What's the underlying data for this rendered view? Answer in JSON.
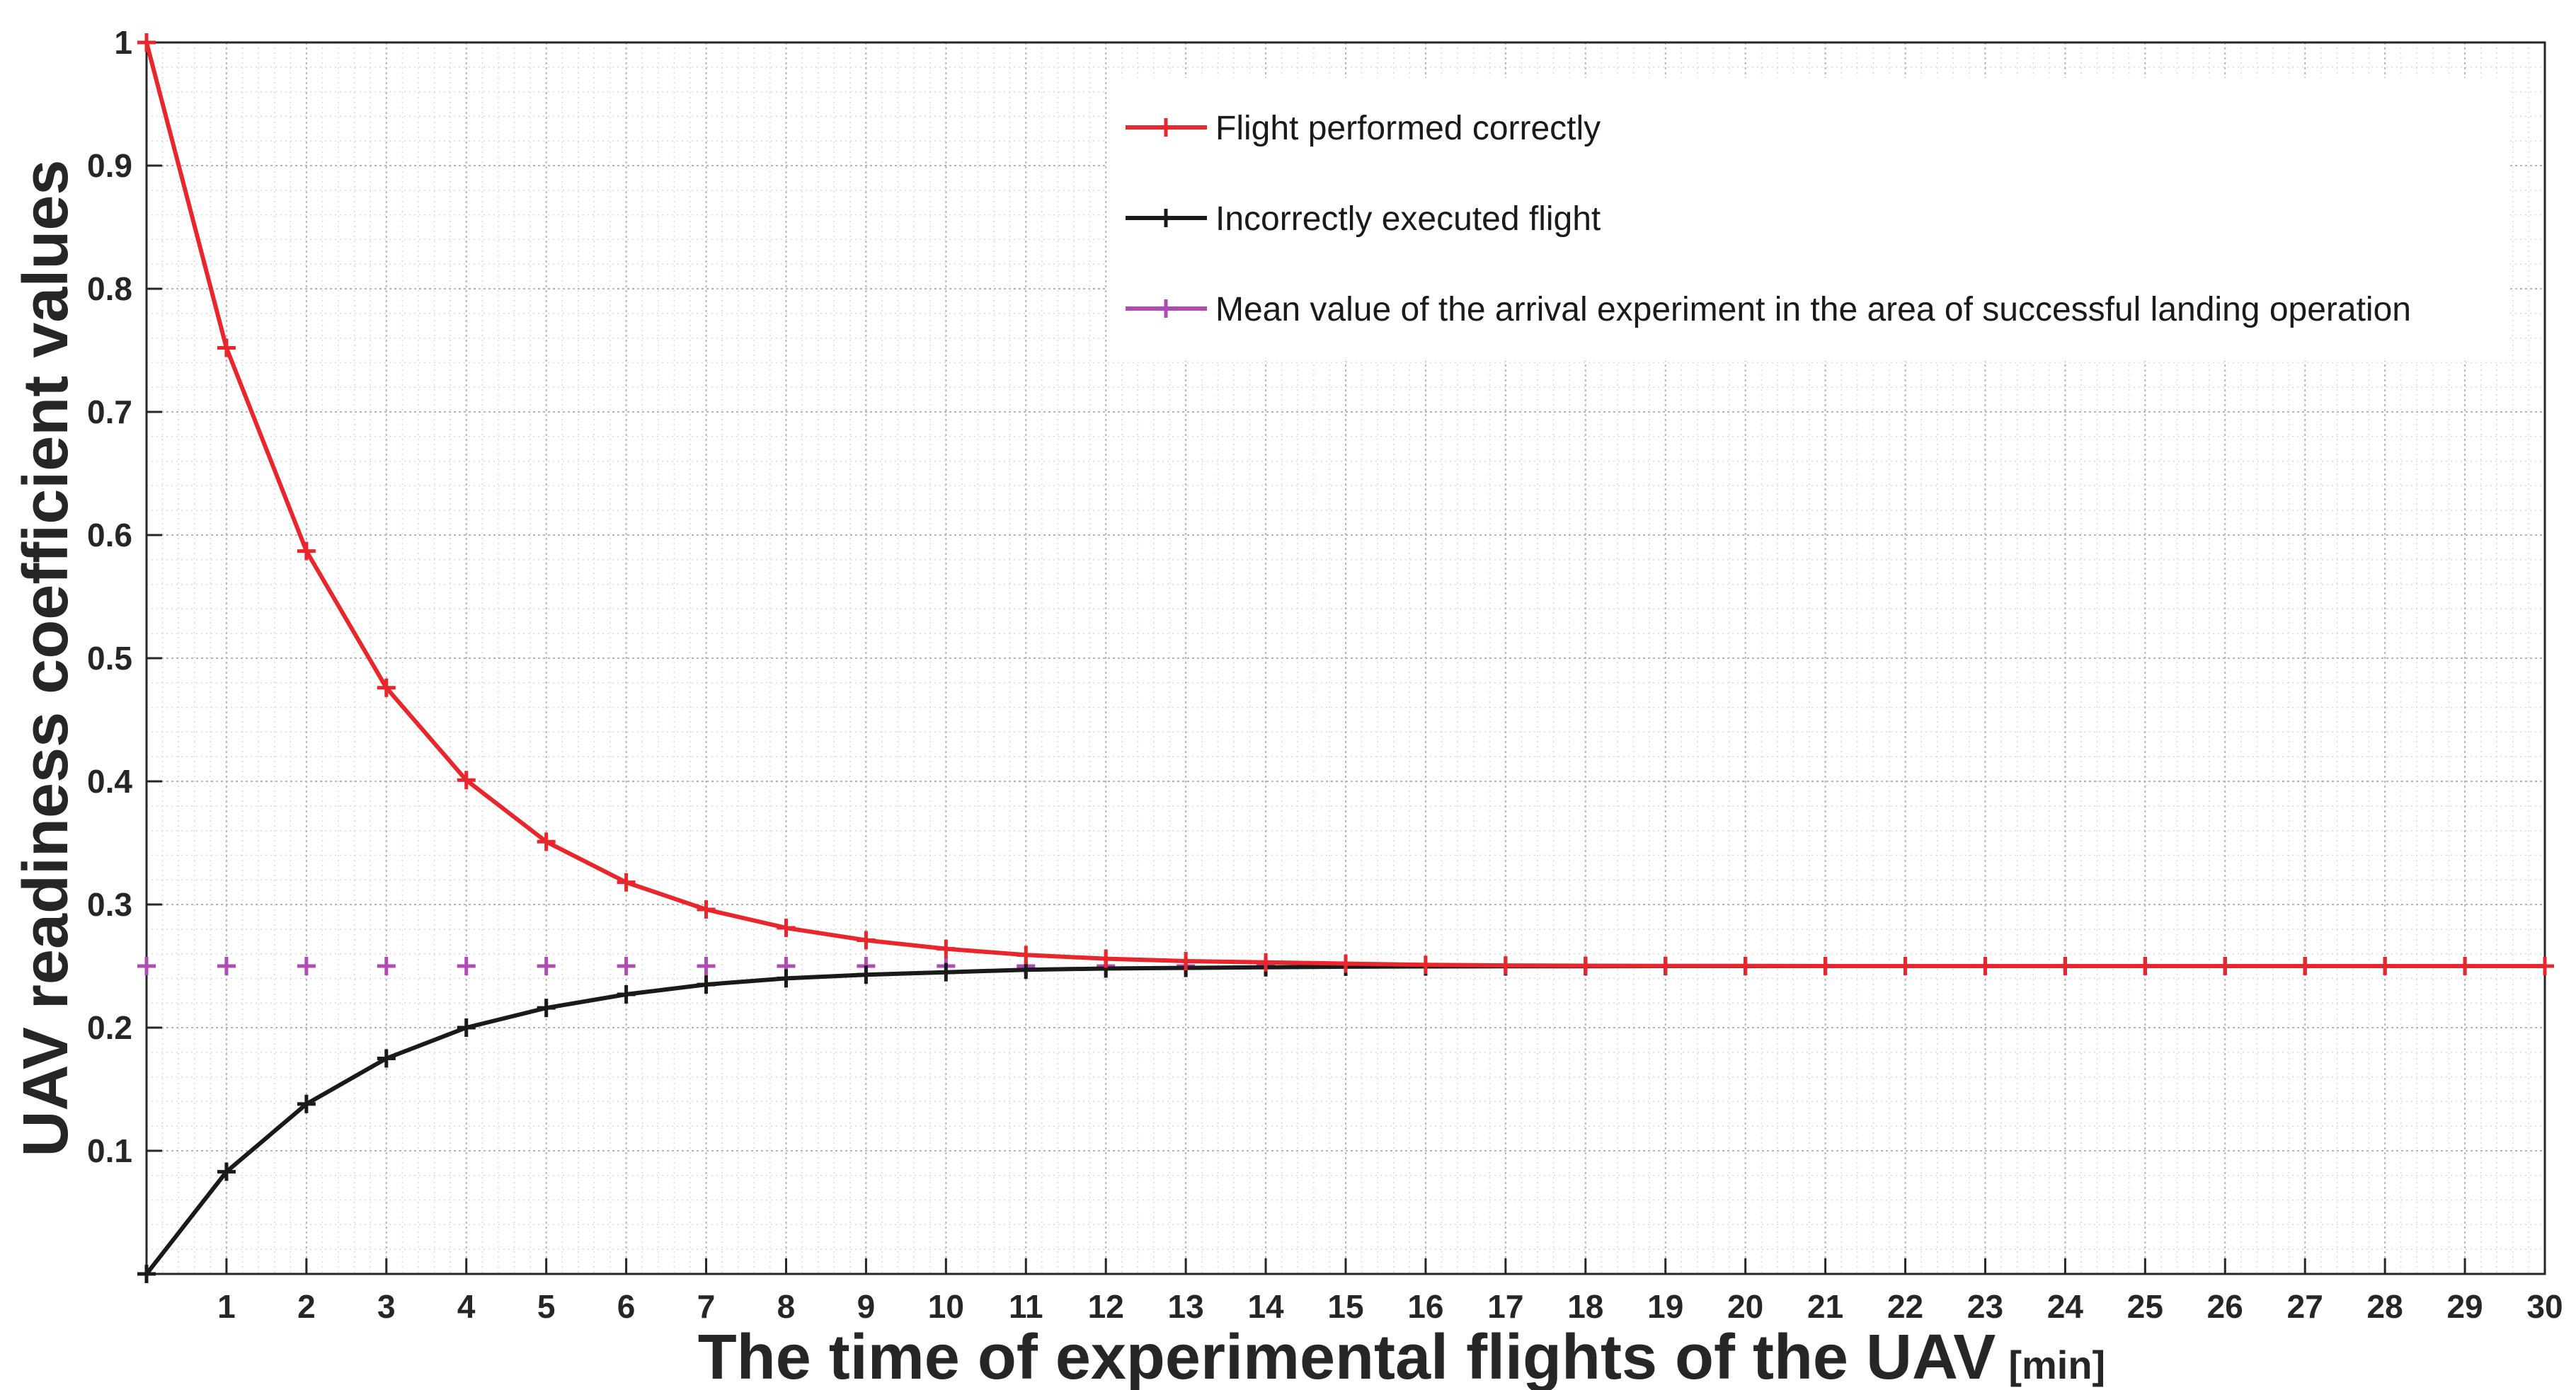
{
  "chart_data": {
    "type": "line",
    "title": "",
    "xlabel": "The time of experimental flights of the UAV",
    "xlabel_unit": "[min]",
    "ylabel": "UAV readiness coefficient values",
    "xlim": [
      0,
      30
    ],
    "ylim": [
      0,
      1
    ],
    "xticks": [
      "1",
      "2",
      "3",
      "4",
      "5",
      "6",
      "7",
      "8",
      "9",
      "10",
      "11",
      "12",
      "13",
      "14",
      "15",
      "16",
      "17",
      "18",
      "19",
      "20",
      "21",
      "22",
      "23",
      "24",
      "25",
      "26",
      "27",
      "28",
      "29",
      "30"
    ],
    "yticks": [
      "0.1",
      "0.2",
      "0.3",
      "0.4",
      "0.5",
      "0.6",
      "0.7",
      "0.8",
      "0.9",
      "1"
    ],
    "grid": true,
    "minor_grid": true,
    "legend_position": "top-right",
    "x": [
      0,
      1,
      2,
      3,
      4,
      5,
      6,
      7,
      8,
      9,
      10,
      11,
      12,
      13,
      14,
      15,
      16,
      17,
      18,
      19,
      20,
      21,
      22,
      23,
      24,
      25,
      26,
      27,
      28,
      29,
      30
    ],
    "series": [
      {
        "name": "Flight performed correctly",
        "color": "#e8262b",
        "marker": "+",
        "values": [
          1.0,
          0.752,
          0.587,
          0.476,
          0.401,
          0.351,
          0.318,
          0.296,
          0.281,
          0.271,
          0.264,
          0.259,
          0.256,
          0.254,
          0.253,
          0.252,
          0.251,
          0.2505,
          0.2503,
          0.2502,
          0.2501,
          0.25,
          0.25,
          0.25,
          0.25,
          0.25,
          0.25,
          0.25,
          0.25,
          0.25,
          0.25
        ]
      },
      {
        "name": "Incorrectly executed flight",
        "color": "#1a1a1a",
        "marker": "+",
        "values": [
          0.0,
          0.083,
          0.138,
          0.175,
          0.2,
          0.216,
          0.227,
          0.235,
          0.24,
          0.243,
          0.245,
          0.247,
          0.248,
          0.2485,
          0.249,
          0.2495,
          0.2497,
          0.2498,
          0.2499,
          0.25,
          0.25,
          0.25,
          0.25,
          0.25,
          0.25,
          0.25,
          0.25,
          0.25,
          0.25,
          0.25,
          0.25
        ]
      },
      {
        "name": "Mean value of the arrival experiment in the area of successful landing operation",
        "color": "#b04ab5",
        "marker": "+",
        "line": false,
        "values": [
          0.25,
          0.25,
          0.25,
          0.25,
          0.25,
          0.25,
          0.25,
          0.25,
          0.25,
          0.25,
          0.25,
          0.25,
          0.25,
          0.25,
          0.25,
          0.25,
          0.25,
          0.25,
          0.25,
          0.25,
          0.25,
          0.25,
          0.25,
          0.25,
          0.25,
          0.25,
          0.25,
          0.25,
          0.25,
          0.25,
          0.25
        ]
      }
    ]
  }
}
